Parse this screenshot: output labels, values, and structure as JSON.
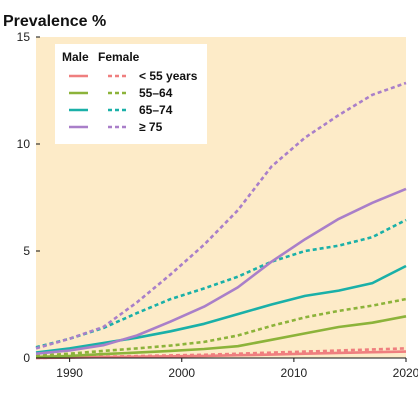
{
  "chart_data": {
    "type": "line",
    "title": "Prevalence %",
    "xlabel": "",
    "ylabel": "",
    "xlim": [
      1987,
      2020
    ],
    "ylim": [
      0,
      15
    ],
    "x_ticks": [
      "1990",
      "2000",
      "2010",
      "2020"
    ],
    "y_ticks": [
      "0",
      "5",
      "10",
      "15"
    ],
    "grid": false,
    "background_color": "#fdebc8",
    "legend": {
      "placement": "top-left",
      "headers": [
        "Male",
        "Female"
      ],
      "labels": [
        "< 55 years",
        "55–64",
        "65–74",
        "≥ 75"
      ]
    },
    "x": [
      1987,
      1990,
      1993,
      1996,
      1999,
      2002,
      2005,
      2008,
      2011,
      2014,
      2017,
      2020
    ],
    "series": [
      {
        "group": "male",
        "age": 0,
        "color": "#ef7f7f",
        "dashed": false,
        "values": [
          0.0,
          0.02,
          0.04,
          0.06,
          0.08,
          0.1,
          0.13,
          0.16,
          0.2,
          0.24,
          0.27,
          0.3
        ]
      },
      {
        "group": "female",
        "age": 0,
        "color": "#ef7f7f",
        "dashed": true,
        "values": [
          0.0,
          0.03,
          0.06,
          0.09,
          0.12,
          0.15,
          0.2,
          0.25,
          0.3,
          0.35,
          0.4,
          0.45
        ]
      },
      {
        "group": "male",
        "age": 1,
        "color": "#8cb33a",
        "dashed": false,
        "values": [
          0.05,
          0.1,
          0.18,
          0.25,
          0.33,
          0.42,
          0.55,
          0.85,
          1.15,
          1.45,
          1.65,
          1.95
        ]
      },
      {
        "group": "female",
        "age": 1,
        "color": "#8cb33a",
        "dashed": true,
        "values": [
          0.1,
          0.2,
          0.33,
          0.45,
          0.58,
          0.75,
          1.05,
          1.5,
          1.9,
          2.2,
          2.45,
          2.75
        ]
      },
      {
        "group": "male",
        "age": 2,
        "color": "#1ab0a8",
        "dashed": false,
        "values": [
          0.25,
          0.45,
          0.7,
          0.95,
          1.25,
          1.6,
          2.05,
          2.5,
          2.9,
          3.15,
          3.5,
          4.3
        ]
      },
      {
        "group": "female",
        "age": 2,
        "color": "#1ab0a8",
        "dashed": true,
        "values": [
          0.5,
          0.9,
          1.4,
          2.1,
          2.75,
          3.25,
          3.8,
          4.5,
          5.0,
          5.25,
          5.65,
          6.45
        ]
      },
      {
        "group": "male",
        "age": 3,
        "color": "#a97fc9",
        "dashed": false,
        "values": [
          0.2,
          0.35,
          0.6,
          1.05,
          1.7,
          2.4,
          3.3,
          4.5,
          5.55,
          6.5,
          7.25,
          7.9
        ]
      },
      {
        "group": "female",
        "age": 3,
        "color": "#a97fc9",
        "dashed": true,
        "values": [
          0.45,
          0.9,
          1.45,
          2.6,
          3.9,
          5.3,
          6.9,
          8.95,
          10.3,
          11.35,
          12.3,
          12.85
        ]
      }
    ]
  }
}
